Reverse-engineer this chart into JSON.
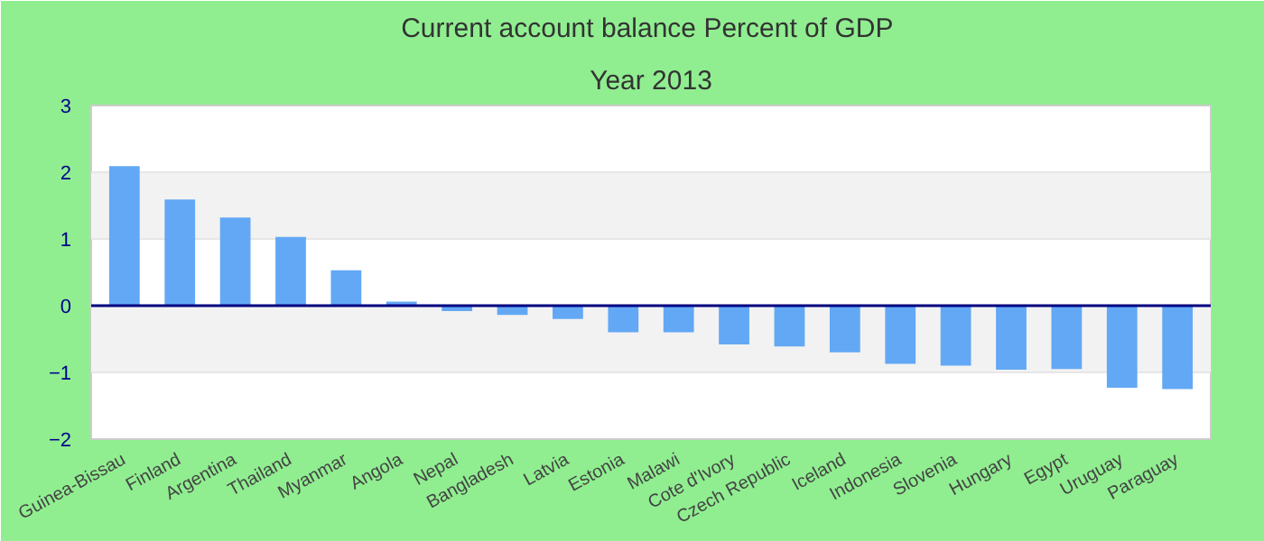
{
  "chart_data": {
    "type": "bar",
    "title": "Current account balance  Percent of GDP",
    "subtitle": "Year 2013",
    "categories": [
      "Guinea-Bissau",
      "Finland",
      "Argentina",
      "Thailand",
      "Myanmar",
      "Angola",
      "Nepal",
      "Bangladesh",
      "Latvia",
      "Estonia",
      "Malawi",
      "Cote d'Ivory",
      "Czech Republic",
      "Iceland",
      "Indonesia",
      "Slovenia",
      "Hungary",
      "Egypt",
      "Uruguay",
      "Paraguay"
    ],
    "values": [
      2.09,
      1.59,
      1.32,
      1.03,
      0.53,
      0.06,
      -0.08,
      -0.14,
      -0.2,
      -0.4,
      -0.4,
      -0.58,
      -0.61,
      -0.7,
      -0.87,
      -0.9,
      -0.96,
      -0.95,
      -1.23,
      -1.25
    ],
    "color": "#62a8f5",
    "ylim": [
      -2,
      3
    ],
    "yticks": [
      -2,
      -1,
      0,
      1,
      2,
      3
    ],
    "grid": "y",
    "ref_lines": [
      {
        "axis": "y",
        "value": 0,
        "color": "#000080"
      }
    ]
  }
}
